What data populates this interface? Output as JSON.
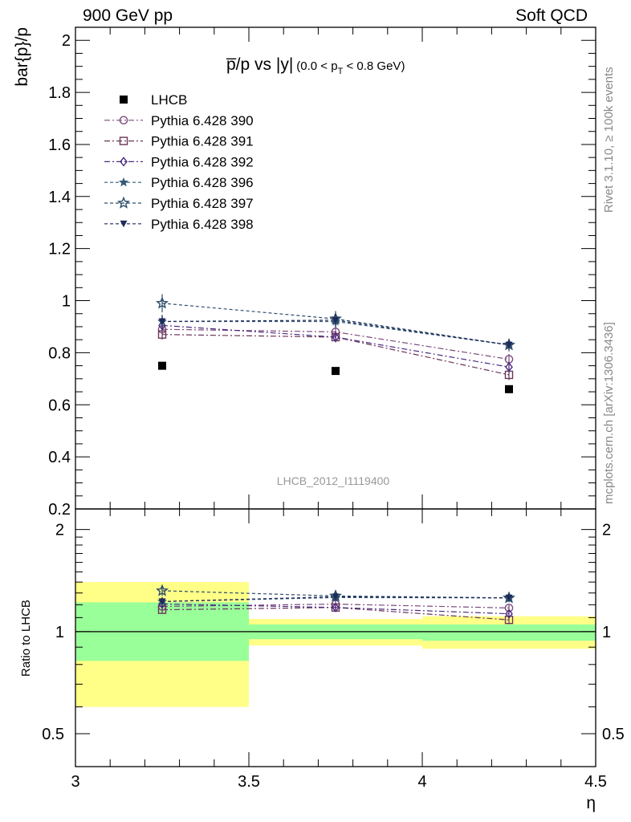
{
  "header": {
    "left": "900 GeV pp",
    "right": "Soft QCD"
  },
  "side_text": {
    "top": "Rivet 3.1.10, ≥ 100k events",
    "bottom": "mcplots.cern.ch [arXiv:1306.3436]"
  },
  "chart_data": {
    "type": "scatter",
    "title": "p̅/p vs |y|",
    "title_range": "(0.0 < p",
    "title_sub": "T",
    "title_range_end": " < 0.8 GeV)",
    "analysis_tag": "LHCB_2012_I1119400",
    "xlabel": "η",
    "ylabel": "bar{p}/p",
    "ratio_ylabel": "Ratio to LHCB",
    "xlim": [
      3.0,
      4.5
    ],
    "ylim": [
      0.2,
      2.05
    ],
    "ratio_ylim": [
      0.4,
      2.3
    ],
    "x_ticks": [
      "3",
      "3.5",
      "4",
      "4.5"
    ],
    "y_ticks": [
      "0.2",
      "0.4",
      "0.6",
      "0.8",
      "1",
      "1.2",
      "1.4",
      "1.6",
      "1.8",
      "2"
    ],
    "ratio_ticks": [
      "0.5",
      "1",
      "2"
    ],
    "grid": false,
    "legend_position": "top-left",
    "x": [
      3.25,
      3.75,
      4.25
    ],
    "data_bins": [
      [
        3.0,
        3.5
      ],
      [
        3.5,
        4.0
      ],
      [
        4.0,
        4.5
      ]
    ],
    "reference": {
      "name": "LHCB",
      "values": [
        0.75,
        0.73,
        0.66
      ]
    },
    "ratio_bands": {
      "stat": [
        [
          0.82,
          1.22
        ],
        [
          0.95,
          1.05
        ],
        [
          0.94,
          1.05
        ]
      ],
      "total": [
        [
          0.6,
          1.4
        ],
        [
          0.91,
          1.09
        ],
        [
          0.89,
          1.11
        ]
      ],
      "stat_color": "#99ff99",
      "total_color": "#ffff88"
    },
    "series": [
      {
        "name": "Pythia 6.428 390",
        "values": [
          0.89,
          0.88,
          0.775
        ],
        "errors": [
          0.02,
          0.02,
          0.02
        ],
        "color": "#7b4a7e",
        "marker": "circle-open",
        "dash": "7,3,2,3"
      },
      {
        "name": "Pythia 6.428 391",
        "values": [
          0.87,
          0.86,
          0.715
        ],
        "errors": [
          0.02,
          0.02,
          0.02
        ],
        "color": "#6b3558",
        "marker": "square-open",
        "dash": "7,3,2,3"
      },
      {
        "name": "Pythia 6.428 392",
        "values": [
          0.905,
          0.86,
          0.745
        ],
        "errors": [
          0.02,
          0.02,
          0.02
        ],
        "color": "#4b2a80",
        "marker": "diamond-open",
        "dash": "7,3,2,3"
      },
      {
        "name": "Pythia 6.428 396",
        "values": [
          0.92,
          0.92,
          0.83
        ],
        "errors": [
          0.025,
          0.025,
          0.02
        ],
        "color": "#345c76",
        "marker": "star-filled",
        "dash": "4,3"
      },
      {
        "name": "Pythia 6.428 397",
        "values": [
          0.99,
          0.93,
          0.83
        ],
        "errors": [
          0.035,
          0.03,
          0.025
        ],
        "color": "#2d4d6a",
        "marker": "star-open",
        "dash": "4,3"
      },
      {
        "name": "Pythia 6.428 398",
        "values": [
          0.92,
          0.925,
          0.83
        ],
        "errors": [
          0.025,
          0.025,
          0.02
        ],
        "color": "#1e2a5a",
        "marker": "triangle-down",
        "dash": "4,3"
      }
    ]
  }
}
